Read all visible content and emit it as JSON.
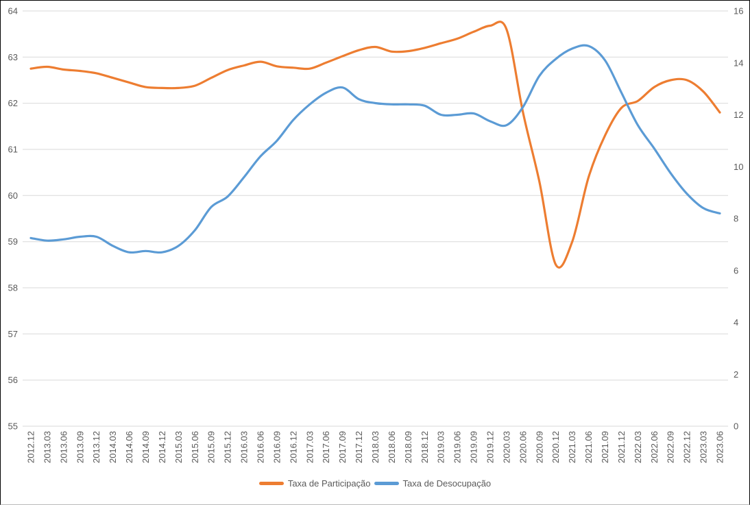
{
  "window": {
    "background": "#ffffff",
    "border_color": "#000000"
  },
  "chart_data": {
    "type": "line",
    "title": "",
    "smooth": true,
    "grid": true,
    "gridline_color": "#d9d9d9",
    "axis_label_color": "#595959",
    "legend_position": "bottom",
    "categories": [
      "2012.12",
      "2013.03",
      "2013.06",
      "2013.09",
      "2013.12",
      "2014.03",
      "2014.06",
      "2014.09",
      "2014.12",
      "2015.03",
      "2015.06",
      "2015.09",
      "2015.12",
      "2016.03",
      "2016.06",
      "2016.09",
      "2016.12",
      "2017.03",
      "2017.06",
      "2017.09",
      "2017.12",
      "2018.03",
      "2018.06",
      "2018.09",
      "2018.12",
      "2019.03",
      "2019.06",
      "2019.09",
      "2019.12",
      "2020.03",
      "2020.06",
      "2020.09",
      "2020.12",
      "2021.03",
      "2021.06",
      "2021.09",
      "2021.12",
      "2022.03",
      "2022.06",
      "2022.09",
      "2022.12",
      "2023.03",
      "2023.06"
    ],
    "series": [
      {
        "name": "Taxa de Participação",
        "axis": "left",
        "color": "#ED7D31",
        "values": [
          62.75,
          62.79,
          62.73,
          62.7,
          62.65,
          62.55,
          62.45,
          62.35,
          62.33,
          62.33,
          62.38,
          62.55,
          62.72,
          62.82,
          62.9,
          62.8,
          62.77,
          62.75,
          62.88,
          63.02,
          63.15,
          63.22,
          63.12,
          63.13,
          63.2,
          63.3,
          63.4,
          63.55,
          63.68,
          63.6,
          61.8,
          60.3,
          58.5,
          59.0,
          60.4,
          61.3,
          61.9,
          62.05,
          62.35,
          62.5,
          62.5,
          62.25,
          61.8
        ]
      },
      {
        "name": "Taxa de Desocupação",
        "axis": "right",
        "color": "#5B9BD5",
        "values": [
          7.25,
          7.15,
          7.2,
          7.3,
          7.3,
          6.95,
          6.7,
          6.75,
          6.7,
          6.95,
          7.55,
          8.45,
          8.85,
          9.6,
          10.4,
          11.0,
          11.8,
          12.4,
          12.85,
          13.05,
          12.6,
          12.45,
          12.4,
          12.4,
          12.35,
          12.0,
          12.0,
          12.05,
          11.75,
          11.6,
          12.3,
          13.5,
          14.15,
          14.55,
          14.65,
          14.1,
          12.85,
          11.6,
          10.7,
          9.75,
          8.95,
          8.4,
          8.2
        ]
      }
    ],
    "left_axis": {
      "min": 55,
      "max": 64,
      "step": 1,
      "tick_labels": [
        "64",
        "63",
        "62",
        "61",
        "60",
        "59",
        "58",
        "57",
        "56",
        "55"
      ]
    },
    "right_axis": {
      "min": 0,
      "max": 16,
      "step": 2,
      "tick_labels": [
        "16",
        "14",
        "12",
        "10",
        "8",
        "6",
        "4",
        "2",
        "0"
      ]
    }
  },
  "legend": {
    "items": [
      {
        "label": "Taxa de Participação",
        "color": "#ED7D31"
      },
      {
        "label": "Taxa de Desocupação",
        "color": "#5B9BD5"
      }
    ]
  }
}
